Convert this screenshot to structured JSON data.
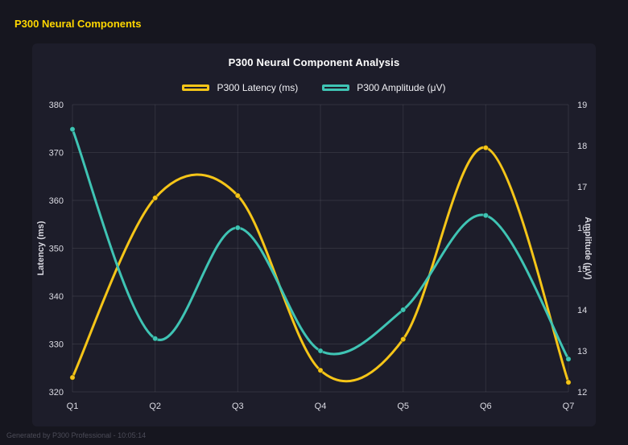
{
  "page": {
    "title": "P300 Neural Components",
    "footer": "Generated by P300 Professional - 10:05:14"
  },
  "chart_data": {
    "type": "line",
    "title": "P300 Neural Component Analysis",
    "categories": [
      "Q1",
      "Q2",
      "Q3",
      "Q4",
      "Q5",
      "Q6",
      "Q7"
    ],
    "series": [
      {
        "name": "P300 Latency (ms)",
        "axis": "left",
        "color": "#f5c518",
        "values": [
          323,
          360.5,
          361,
          324.5,
          331,
          371,
          322
        ]
      },
      {
        "name": "P300 Amplitude (μV)",
        "axis": "right",
        "color": "#3fc4b4",
        "values": [
          18.4,
          13.3,
          16.0,
          13.0,
          14.0,
          16.3,
          12.8
        ]
      }
    ],
    "left_axis": {
      "label": "Latency (ms)",
      "min": 320,
      "max": 380,
      "ticks": [
        320,
        330,
        340,
        350,
        360,
        370,
        380
      ]
    },
    "right_axis": {
      "label": "Amplitude (μV)",
      "min": 12,
      "max": 19,
      "ticks": [
        12,
        13,
        14,
        15,
        16,
        17,
        18,
        19
      ]
    },
    "grid": true,
    "legend_position": "top",
    "line_style": "smooth"
  }
}
